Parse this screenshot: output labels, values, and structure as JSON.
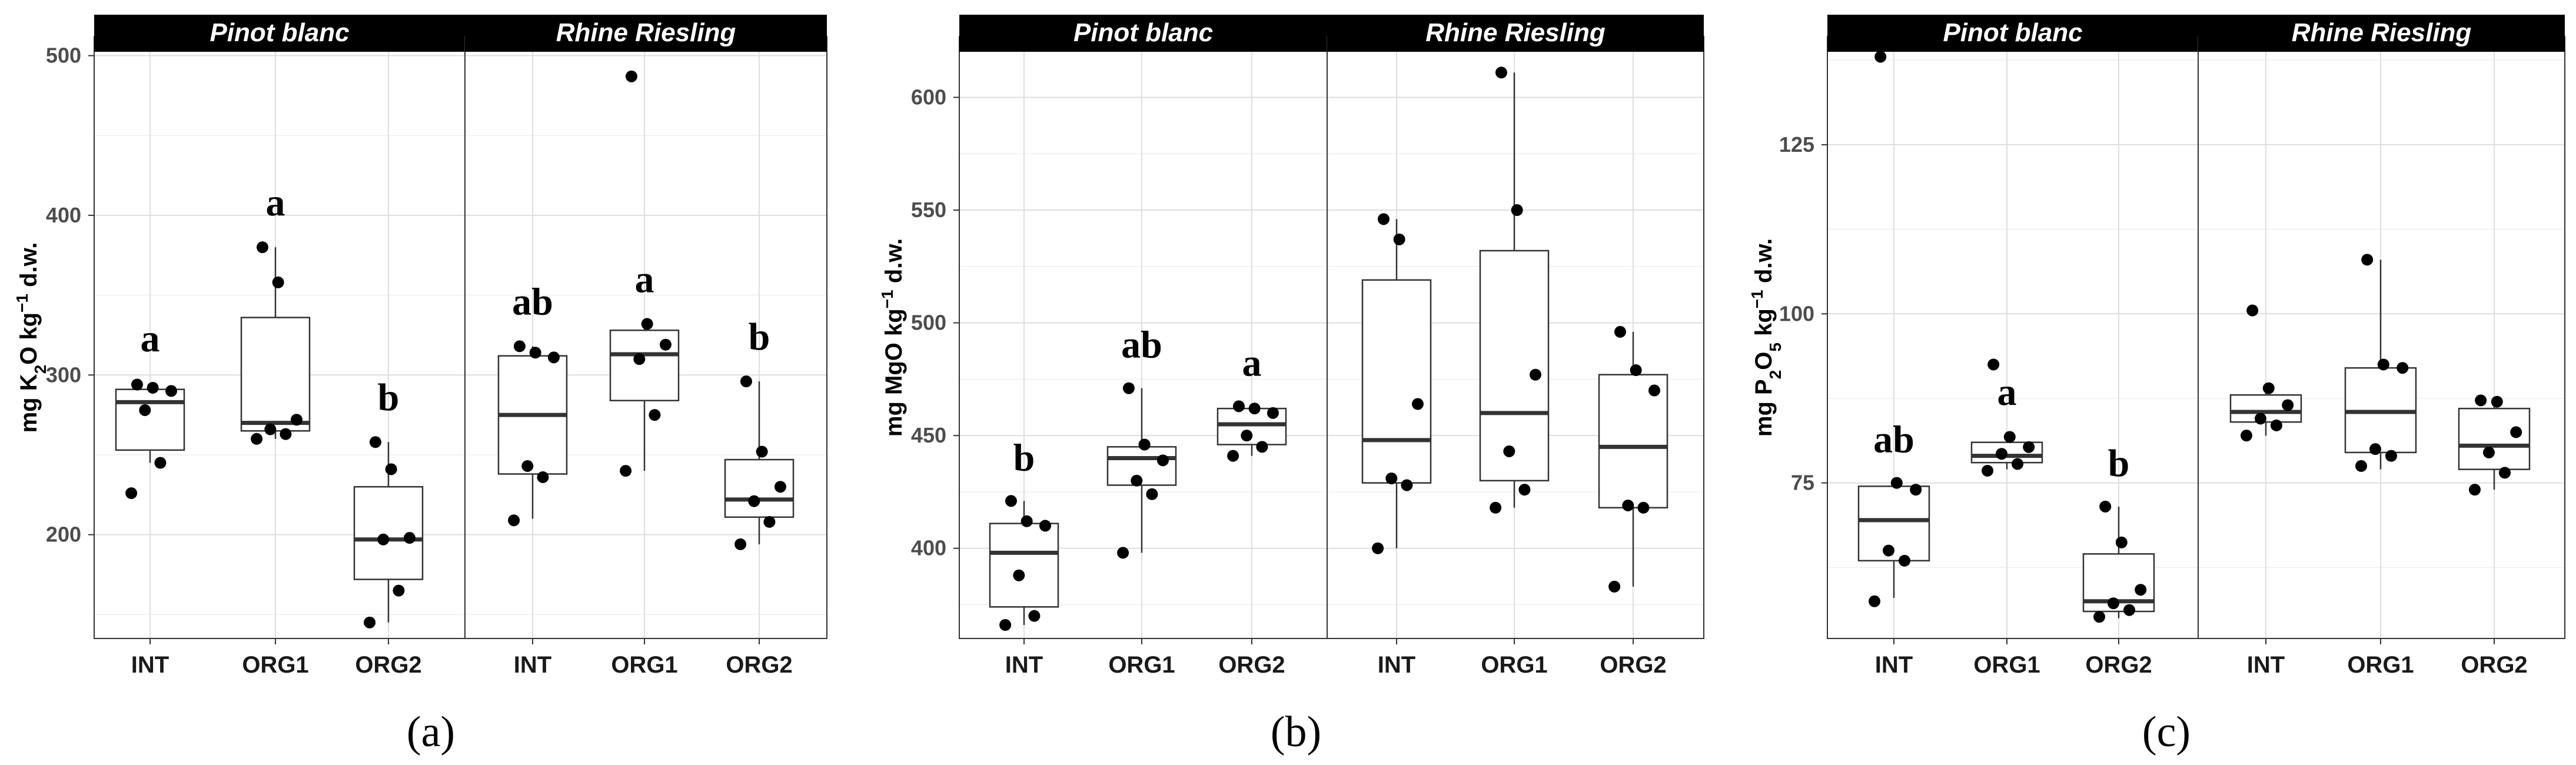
{
  "chart_data": [
    {
      "type": "box",
      "panel_label": "(a)",
      "ylabel": {
        "prefix": "mg  K",
        "sub1": "2",
        "mid": "O kg",
        "sup": "−1",
        "suffix": " d.w."
      },
      "ylim": [
        135,
        512
      ],
      "yticks": [
        200,
        300,
        400,
        500
      ],
      "ytick_labels": [
        "200",
        "300",
        "400",
        "500"
      ],
      "categories": [
        "INT",
        "ORG1",
        "ORG2"
      ],
      "facets": [
        {
          "name": "Pinot blanc",
          "groups": [
            {
              "cat": "INT",
              "q1": 253,
              "median": 283,
              "q3": 291,
              "wlo": 245,
              "whi": 295,
              "points": [
                226,
                245,
                278,
                290,
                292,
                294
              ],
              "sig": "a"
            },
            {
              "cat": "ORG1",
              "q1": 265,
              "median": 270,
              "q3": 336,
              "wlo": 260,
              "whi": 380,
              "points": [
                260,
                263,
                266,
                272,
                358,
                380
              ],
              "sig": "a"
            },
            {
              "cat": "ORG2",
              "q1": 172,
              "median": 197,
              "q3": 230,
              "wlo": 145,
              "whi": 258,
              "points": [
                145,
                165,
                197,
                198,
                241,
                258
              ],
              "sig": "b"
            }
          ]
        },
        {
          "name": "Rhine Riesling",
          "groups": [
            {
              "cat": "INT",
              "q1": 238,
              "median": 275,
              "q3": 312,
              "wlo": 210,
              "whi": 318,
              "points": [
                209,
                236,
                243,
                311,
                314,
                318
              ],
              "sig": "ab"
            },
            {
              "cat": "ORG1",
              "q1": 284,
              "median": 313,
              "q3": 328,
              "wlo": 240,
              "whi": 332,
              "points": [
                240,
                275,
                310,
                319,
                332,
                487
              ],
              "sig": "a"
            },
            {
              "cat": "ORG2",
              "q1": 211,
              "median": 222,
              "q3": 247,
              "wlo": 194,
              "whi": 296,
              "points": [
                194,
                208,
                221,
                230,
                252,
                296
              ],
              "sig": "b"
            }
          ]
        }
      ]
    },
    {
      "type": "box",
      "panel_label": "(b)",
      "ylabel": {
        "prefix": "mg MgO  kg",
        "sup": "−1",
        "suffix": " d.w."
      },
      "ylim": [
        360,
        627
      ],
      "yticks": [
        400,
        450,
        500,
        550,
        600
      ],
      "ytick_labels": [
        "400",
        "450",
        "500",
        "550",
        "600"
      ],
      "categories": [
        "INT",
        "ORG1",
        "ORG2"
      ],
      "facets": [
        {
          "name": "Pinot blanc",
          "groups": [
            {
              "cat": "INT",
              "q1": 374,
              "median": 398,
              "q3": 411,
              "wlo": 366,
              "whi": 421,
              "points": [
                366,
                370,
                388,
                410,
                412,
                421
              ],
              "sig": "b"
            },
            {
              "cat": "ORG1",
              "q1": 428,
              "median": 440,
              "q3": 445,
              "wlo": 398,
              "whi": 471,
              "points": [
                398,
                424,
                430,
                439,
                446,
                471
              ],
              "sig": "ab"
            },
            {
              "cat": "ORG2",
              "q1": 446,
              "median": 455,
              "q3": 462,
              "wlo": 441,
              "whi": 463,
              "points": [
                441,
                445,
                450,
                460,
                462,
                463
              ],
              "sig": "a"
            }
          ]
        },
        {
          "name": "Rhine Riesling",
          "groups": [
            {
              "cat": "INT",
              "q1": 429,
              "median": 448,
              "q3": 519,
              "wlo": 400,
              "whi": 546,
              "points": [
                400,
                428,
                431,
                464,
                537,
                546
              ],
              "sig": ""
            },
            {
              "cat": "ORG1",
              "q1": 430,
              "median": 460,
              "q3": 532,
              "wlo": 418,
              "whi": 611,
              "points": [
                418,
                426,
                443,
                477,
                550,
                611
              ],
              "sig": ""
            },
            {
              "cat": "ORG2",
              "q1": 418,
              "median": 445,
              "q3": 477,
              "wlo": 383,
              "whi": 496,
              "points": [
                383,
                418,
                419,
                470,
                479,
                496
              ],
              "sig": ""
            }
          ]
        }
      ]
    },
    {
      "type": "box",
      "panel_label": "(c)",
      "ylabel": {
        "prefix": "mg  P",
        "sub1": "2",
        "mid": "O",
        "sub2": "5",
        "mid2": " kg",
        "sup": "−1",
        "suffix": " d.w."
      },
      "ylim": [
        52,
        141
      ],
      "yticks": [
        75,
        100,
        125
      ],
      "ytick_labels": [
        "75",
        "100",
        "125"
      ],
      "categories": [
        "INT",
        "ORG1",
        "ORG2"
      ],
      "facets": [
        {
          "name": "Pinot blanc",
          "groups": [
            {
              "cat": "INT",
              "q1": 63.5,
              "median": 69.5,
              "q3": 74.5,
              "wlo": 58,
              "whi": 75,
              "points": [
                57.5,
                63.5,
                65,
                74,
                75,
                138
              ],
              "sig": "ab"
            },
            {
              "cat": "ORG1",
              "q1": 78,
              "median": 79,
              "q3": 81,
              "wlo": 77,
              "whi": 82,
              "points": [
                76.8,
                77.8,
                79.3,
                80.3,
                81.8,
                92.5
              ],
              "sig": "a"
            },
            {
              "cat": "ORG2",
              "q1": 56,
              "median": 57.5,
              "q3": 64.5,
              "wlo": 55,
              "whi": 71.5,
              "points": [
                55.2,
                56.2,
                57.2,
                59.2,
                66.2,
                71.5
              ],
              "sig": "b"
            }
          ]
        },
        {
          "name": "Rhine Riesling",
          "groups": [
            {
              "cat": "INT",
              "q1": 84,
              "median": 85.5,
              "q3": 88,
              "wlo": 82,
              "whi": 89,
              "points": [
                82,
                83.5,
                84.5,
                86.5,
                89,
                100.5
              ],
              "sig": ""
            },
            {
              "cat": "ORG1",
              "q1": 79.5,
              "median": 85.5,
              "q3": 92,
              "wlo": 77,
              "whi": 108,
              "points": [
                77.5,
                79,
                80,
                92,
                92.5,
                108
              ],
              "sig": ""
            },
            {
              "cat": "ORG2",
              "q1": 77,
              "median": 80.5,
              "q3": 86,
              "wlo": 74,
              "whi": 87,
              "points": [
                74,
                76.5,
                79.5,
                82.5,
                87,
                87.2
              ],
              "sig": ""
            }
          ]
        }
      ]
    }
  ]
}
